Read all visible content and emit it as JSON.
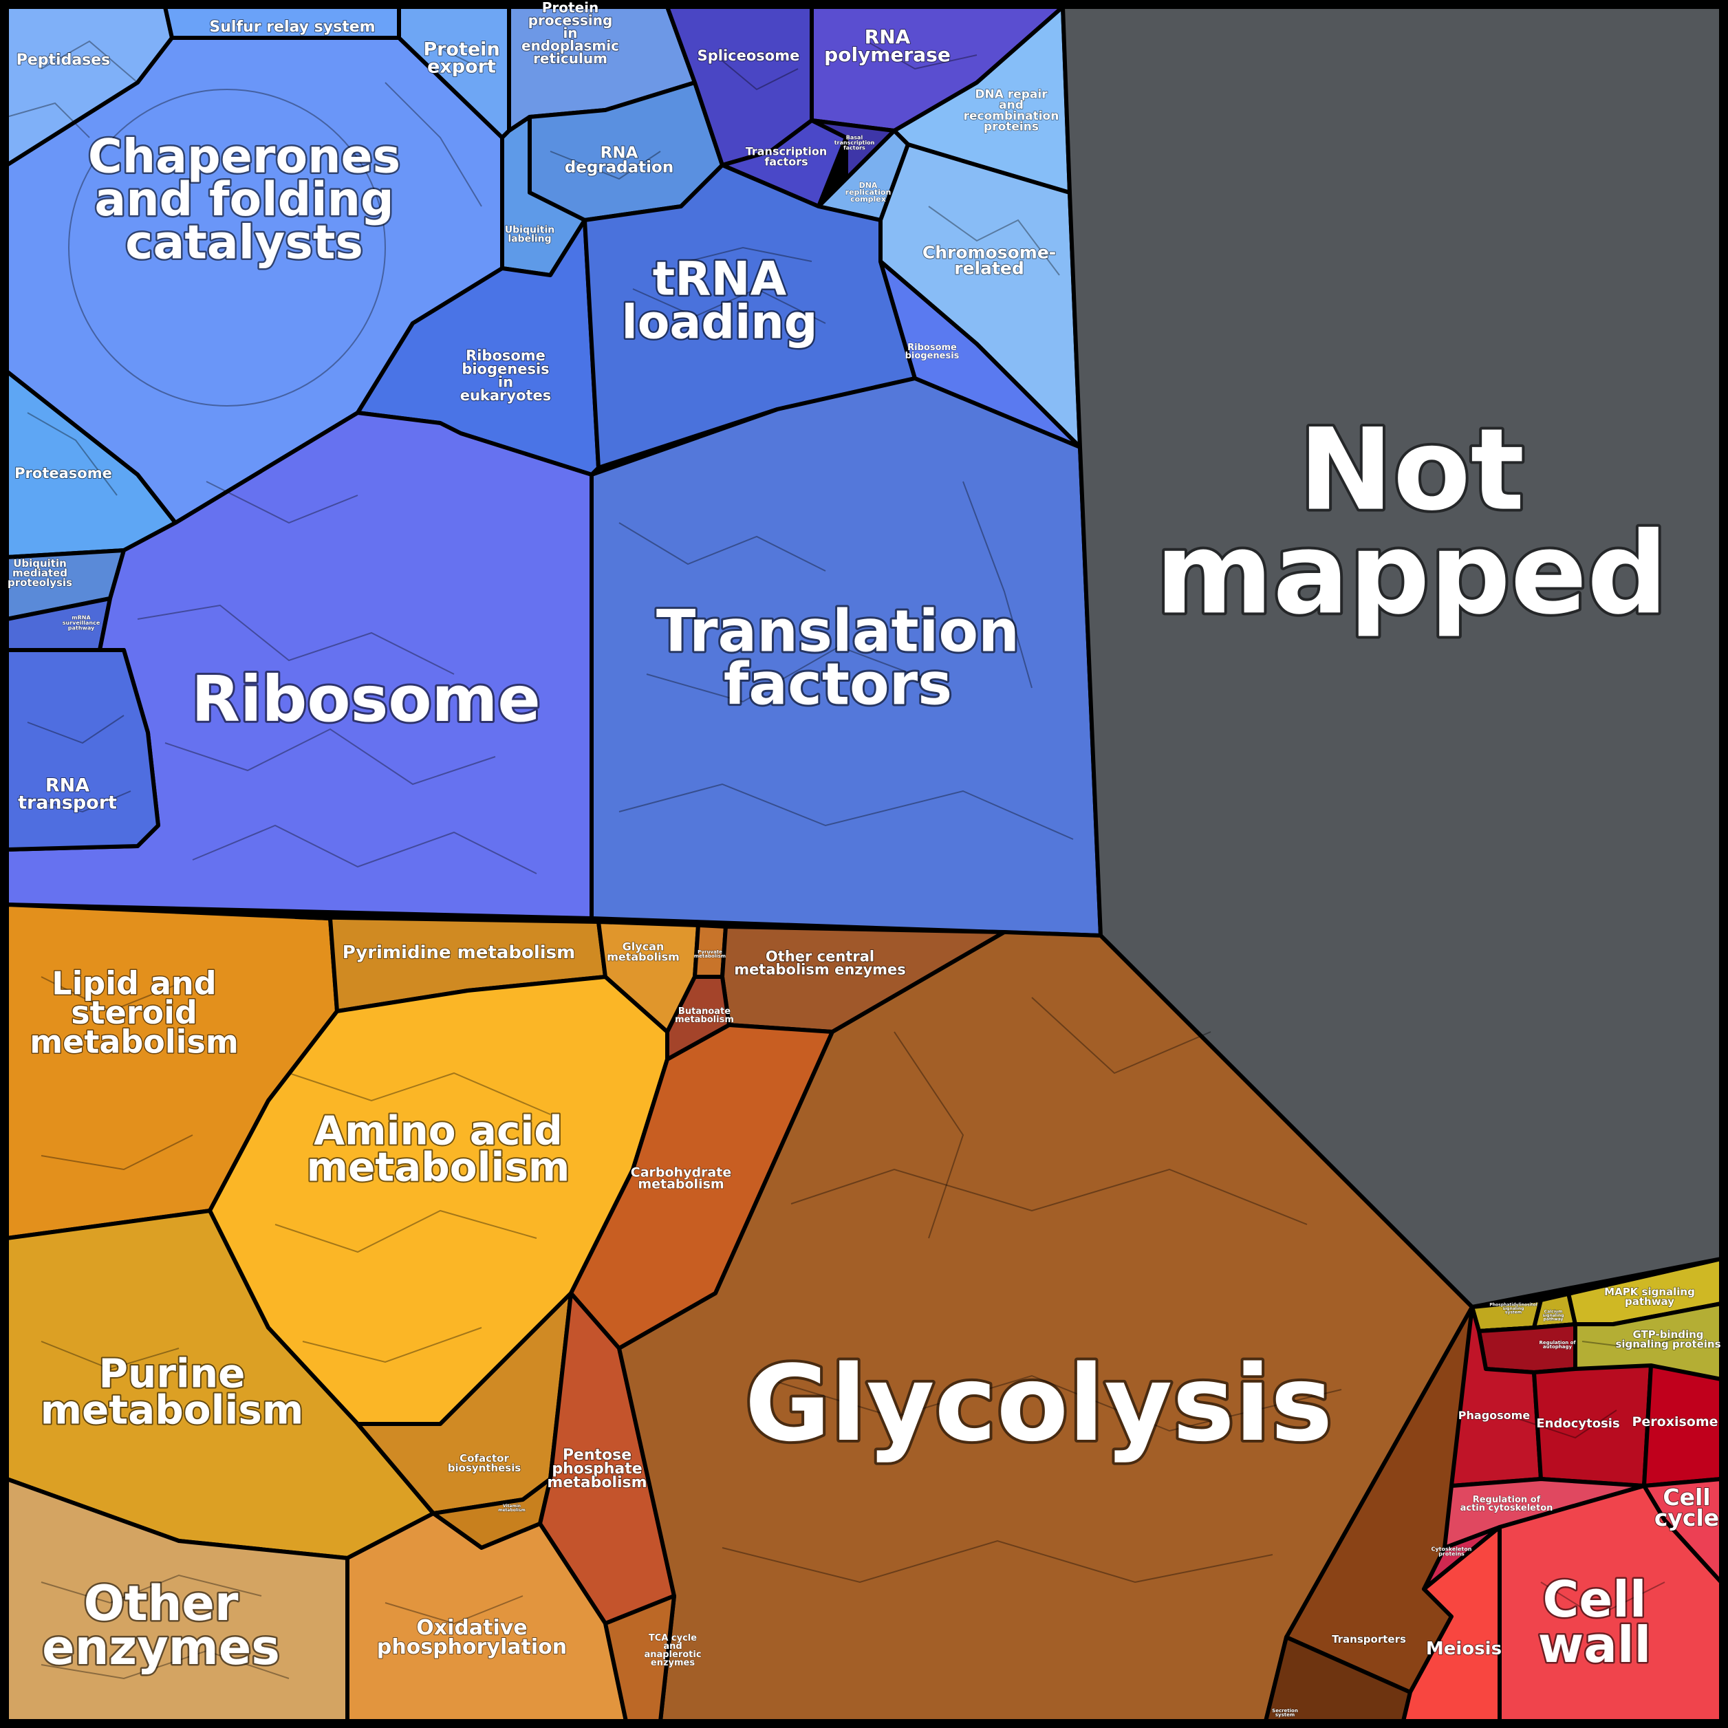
{
  "diagram": {
    "frame_color": "#000000",
    "regions": [
      {
        "id": "chaperones",
        "lines": [
          "Chaperones",
          "and folding",
          "catalysts"
        ],
        "color": "#6a96f8"
      },
      {
        "id": "peptidases",
        "lines": [
          "Peptidases"
        ],
        "color": "#7fb0f8"
      },
      {
        "id": "sulfur-relay",
        "lines": [
          "Sulfur relay system"
        ],
        "color": "#6aa2f8"
      },
      {
        "id": "protein-export",
        "lines": [
          "Protein",
          "export"
        ],
        "color": "#6ea6f4"
      },
      {
        "id": "protein-processing",
        "lines": [
          "Protein",
          "processing",
          "in",
          "endoplasmic",
          "reticulum"
        ],
        "color": "#6d98e6"
      },
      {
        "id": "rna-degradation",
        "lines": [
          "RNA",
          "degradation"
        ],
        "color": "#5a90e0"
      },
      {
        "id": "ubiquitin-labeling",
        "lines": [
          "Ubiquitin",
          "labeling"
        ],
        "color": "#5e9ae8"
      },
      {
        "id": "proteasome",
        "lines": [
          "Proteasome"
        ],
        "color": "#5ea6f4"
      },
      {
        "id": "ubiquitin-proteolysis",
        "lines": [
          "Ubiquitin",
          "mediated",
          "proteolysis"
        ],
        "color": "#5a8ad8"
      },
      {
        "id": "rna-surveillance",
        "lines": [
          "mRNA",
          "surveillance",
          "pathway"
        ],
        "color": "#4d6ad8"
      },
      {
        "id": "ribosome-biogenesis-euk",
        "lines": [
          "Ribosome",
          "biogenesis",
          "in",
          "eukaryotes"
        ],
        "color": "#4a74e6"
      },
      {
        "id": "spliceosome",
        "lines": [
          "Spliceosome"
        ],
        "color": "#4a46c4"
      },
      {
        "id": "rna-polymerase",
        "lines": [
          "RNA",
          "polymerase"
        ],
        "color": "#5a4ed0"
      },
      {
        "id": "transcription-factors",
        "lines": [
          "Transcription",
          "factors"
        ],
        "color": "#4a48c8"
      },
      {
        "id": "basal-transcription",
        "lines": [
          "Basal",
          "transcription",
          "factors"
        ],
        "color": "#3e36a8"
      },
      {
        "id": "dna-repair",
        "lines": [
          "DNA repair",
          "and",
          "recombination",
          "proteins"
        ],
        "color": "#86bef8"
      },
      {
        "id": "dna-replication",
        "lines": [
          "DNA",
          "replication",
          "complex"
        ],
        "color": "#7ab0f0"
      },
      {
        "id": "chromosome",
        "lines": [
          "Chromosome-",
          "related"
        ],
        "color": "#88bcf6"
      },
      {
        "id": "trna-loading",
        "lines": [
          "tRNA",
          "loading"
        ],
        "color": "#4a72dc"
      },
      {
        "id": "ribosome-biogenesis",
        "lines": [
          "Ribosome",
          "biogenesis"
        ],
        "color": "#5a7af0"
      },
      {
        "id": "ribosome",
        "lines": [
          "Ribosome"
        ],
        "color": "#6672f0"
      },
      {
        "id": "rna-transport",
        "lines": [
          "RNA",
          "transport"
        ],
        "color": "#4f6ee0"
      },
      {
        "id": "translation-factors",
        "lines": [
          "Translation",
          "factors"
        ],
        "color": "#5478da"
      },
      {
        "id": "not-mapped",
        "lines": [
          "Not",
          "mapped"
        ],
        "color": "#53575b"
      },
      {
        "id": "lipid",
        "lines": [
          "Lipid and",
          "steroid",
          "metabolism"
        ],
        "color": "#e3901c"
      },
      {
        "id": "pyrimidine",
        "lines": [
          "Pyrimidine metabolism"
        ],
        "color": "#d08a22"
      },
      {
        "id": "glycan",
        "lines": [
          "Glycan",
          "metabolism"
        ],
        "color": "#e0962c"
      },
      {
        "id": "pyruvate",
        "lines": [
          "Pyruvate",
          "metabolism"
        ],
        "color": "#c8742a"
      },
      {
        "id": "other-central",
        "lines": [
          "Other central",
          "metabolism enzymes"
        ],
        "color": "#a0582a"
      },
      {
        "id": "butanoate",
        "lines": [
          "Butanoate",
          "metabolism"
        ],
        "color": "#a4442a"
      },
      {
        "id": "amino-acid",
        "lines": [
          "Amino acid",
          "metabolism"
        ],
        "color": "#fbb626"
      },
      {
        "id": "carbohydrate",
        "lines": [
          "Carbohydrate",
          "metabolism"
        ],
        "color": "#c85e22"
      },
      {
        "id": "purine",
        "lines": [
          "Purine",
          "metabolism"
        ],
        "color": "#dca024"
      },
      {
        "id": "cofactor",
        "lines": [
          "Cofactor",
          "biosynthesis"
        ],
        "color": "#d08a24"
      },
      {
        "id": "vitamin",
        "lines": [
          "Vitamin",
          "metabolism"
        ],
        "color": "#c8801e"
      },
      {
        "id": "pentose",
        "lines": [
          "Pentose",
          "phosphate",
          "metabolism"
        ],
        "color": "#c4542c"
      },
      {
        "id": "glycolysis",
        "lines": [
          "Glycolysis"
        ],
        "color": "#a35f27"
      },
      {
        "id": "other-enzymes",
        "lines": [
          "Other",
          "enzymes"
        ],
        "color": "#d4a462"
      },
      {
        "id": "oxidative",
        "lines": [
          "Oxidative",
          "phosphorylation"
        ],
        "color": "#e2953e"
      },
      {
        "id": "tca",
        "lines": [
          "TCA cycle",
          "and",
          "anaplerotic",
          "enzymes"
        ],
        "color": "#bc6826"
      },
      {
        "id": "transporters",
        "lines": [
          "Transporters"
        ],
        "color": "#8a4316"
      },
      {
        "id": "secretion",
        "lines": [
          "Secretion",
          "system"
        ],
        "color": "#6e3410"
      },
      {
        "id": "mapk",
        "lines": [
          "MAPK signaling",
          "pathway"
        ],
        "color": "#cfb824"
      },
      {
        "id": "phosphatidylinositol",
        "lines": [
          "Phosphatidylinositol",
          "signaling",
          "system"
        ],
        "color": "#c0a81e"
      },
      {
        "id": "calcium",
        "lines": [
          "Calcium",
          "signaling",
          "pathway"
        ],
        "color": "#c4ac20"
      },
      {
        "id": "gtp-binding",
        "lines": [
          "GTP-binding",
          "signaling proteins"
        ],
        "color": "#b4ae34"
      },
      {
        "id": "regulation-autophagy",
        "lines": [
          "Regulation of",
          "autophagy"
        ],
        "color": "#a0101e"
      },
      {
        "id": "phagosome",
        "lines": [
          "Phagosome"
        ],
        "color": "#c01428"
      },
      {
        "id": "endocytosis",
        "lines": [
          "Endocytosis"
        ],
        "color": "#b80c20"
      },
      {
        "id": "peroxisome",
        "lines": [
          "Peroxisome"
        ],
        "color": "#c0001c"
      },
      {
        "id": "regulation-actin",
        "lines": [
          "Regulation of",
          "actin cytoskeleton"
        ],
        "color": "#e04860"
      },
      {
        "id": "cytoskeleton",
        "lines": [
          "Cytoskeleton",
          "proteins"
        ],
        "color": "#d02850"
      },
      {
        "id": "cell-cycle",
        "lines": [
          "Cell",
          "cycle"
        ],
        "color": "#ec4054"
      },
      {
        "id": "meiosis",
        "lines": [
          "Meiosis"
        ],
        "color": "#f84640"
      },
      {
        "id": "cell-wall",
        "lines": [
          "Cell",
          "wall"
        ],
        "color": "#f0444c"
      }
    ]
  }
}
